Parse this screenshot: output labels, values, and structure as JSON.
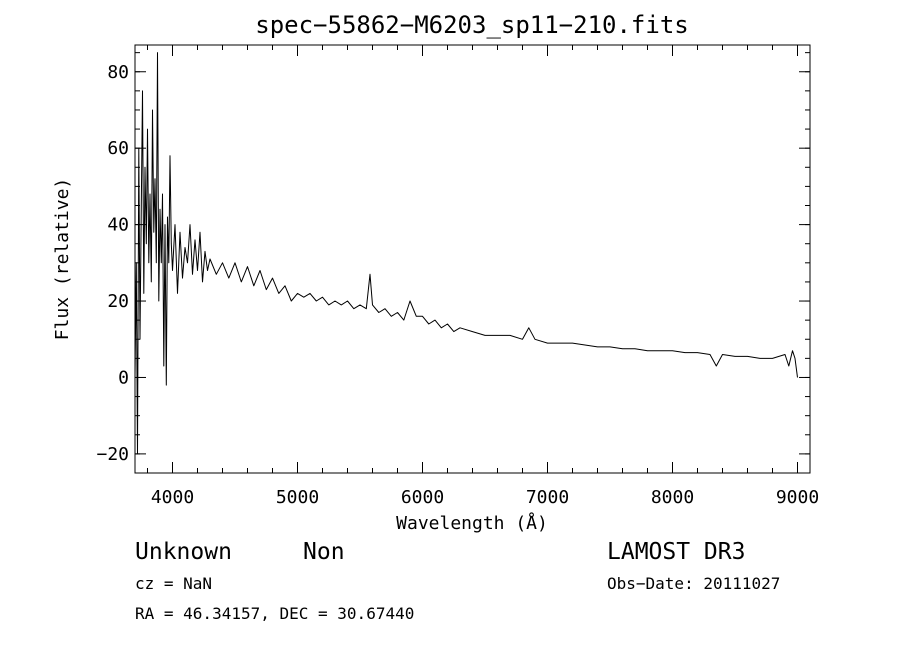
{
  "chart_data": {
    "type": "line",
    "title": "spec−55862−M6203_sp11−210.fits",
    "xlabel": "Wavelength (Å)",
    "ylabel": "Flux (relative)",
    "xlim": [
      3700,
      9100
    ],
    "ylim": [
      -25,
      87
    ],
    "x_ticks": [
      4000,
      5000,
      6000,
      7000,
      8000,
      9000
    ],
    "x_tick_labels": [
      "4000",
      "5000",
      "6000",
      "7000",
      "8000",
      "9000"
    ],
    "y_ticks": [
      -20,
      0,
      20,
      40,
      60,
      80
    ],
    "y_tick_labels": [
      "−20",
      "0",
      "20",
      "40",
      "60",
      "80"
    ],
    "x_minor_step": 200,
    "y_minor_step": 5,
    "grid": false,
    "series": [
      {
        "x": [
          3700,
          3710,
          3720,
          3730,
          3740,
          3750,
          3760,
          3770,
          3780,
          3790,
          3800,
          3810,
          3820,
          3830,
          3840,
          3850,
          3860,
          3870,
          3880,
          3890,
          3900,
          3910,
          3920,
          3930,
          3940,
          3950,
          3960,
          3970,
          3980,
          3990,
          4000,
          4020,
          4040,
          4060,
          4080,
          4100,
          4120,
          4140,
          4160,
          4180,
          4200,
          4220,
          4240,
          4260,
          4280,
          4300,
          4350,
          4400,
          4450,
          4500,
          4550,
          4600,
          4650,
          4700,
          4750,
          4800,
          4850,
          4900,
          4950,
          5000,
          5050,
          5100,
          5150,
          5200,
          5250,
          5300,
          5350,
          5400,
          5450,
          5500,
          5550,
          5580,
          5600,
          5650,
          5700,
          5750,
          5800,
          5850,
          5900,
          5950,
          6000,
          6050,
          6100,
          6150,
          6200,
          6250,
          6300,
          6400,
          6500,
          6600,
          6700,
          6800,
          6850,
          6900,
          7000,
          7100,
          7200,
          7300,
          7400,
          7500,
          7600,
          7700,
          7800,
          7900,
          8000,
          8100,
          8200,
          8300,
          8350,
          8400,
          8500,
          8600,
          8700,
          8800,
          8900,
          8930,
          8960,
          8980,
          9000
        ],
        "y": [
          0,
          30,
          -20,
          60,
          10,
          45,
          75,
          22,
          55,
          35,
          65,
          30,
          48,
          25,
          70,
          38,
          52,
          30,
          85,
          20,
          44,
          30,
          48,
          3,
          40,
          -2,
          42,
          30,
          58,
          35,
          28,
          40,
          22,
          38,
          26,
          34,
          30,
          40,
          27,
          36,
          28,
          38,
          25,
          33,
          28,
          31,
          27,
          30,
          26,
          30,
          25,
          29,
          24,
          28,
          23,
          26,
          22,
          24,
          20,
          22,
          21,
          22,
          20,
          21,
          19,
          20,
          19,
          20,
          18,
          19,
          18,
          27,
          19,
          17,
          18,
          16,
          17,
          15,
          20,
          16,
          16,
          14,
          15,
          13,
          14,
          12,
          13,
          12,
          11,
          11,
          11,
          10,
          13,
          10,
          9,
          9,
          9,
          8.5,
          8,
          8,
          7.5,
          7.5,
          7,
          7,
          7,
          6.5,
          6.5,
          6,
          3,
          6,
          5.5,
          5.5,
          5,
          5,
          6,
          3,
          7,
          5,
          0
        ]
      }
    ]
  },
  "annotations": {
    "left_line1_a": "Unknown",
    "left_line1_b": "Non",
    "cz": "cz = NaN",
    "coords": "RA =  46.34157, DEC =  30.67440",
    "right_line1": "LAMOST DR3",
    "obs_date": "Obs−Date: 20111027"
  }
}
